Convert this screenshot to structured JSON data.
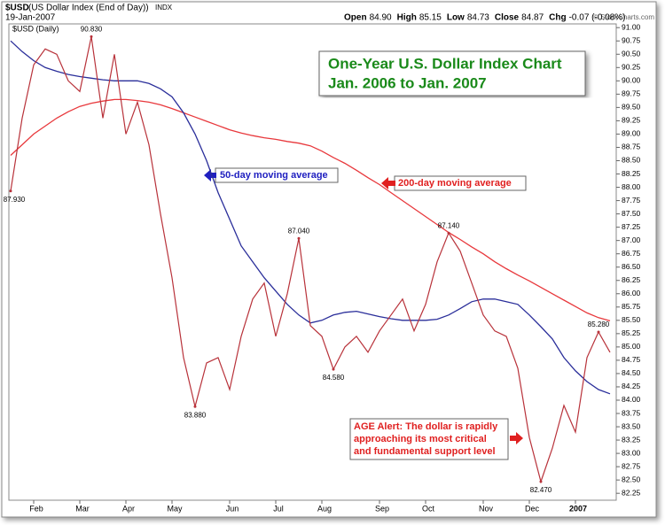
{
  "header": {
    "symbol": "$USD",
    "description": "(US Dollar Index (End of Day))",
    "exchange": "INDX",
    "date": "19-Jan-2007",
    "quote": [
      {
        "label": "Open",
        "value": "84.90"
      },
      {
        "label": "High",
        "value": "85.15"
      },
      {
        "label": "Low",
        "value": "84.73"
      },
      {
        "label": "Close",
        "value": "84.87"
      },
      {
        "label": "Chg",
        "value": "-0.07 (-0.08%)"
      }
    ],
    "source": "© StockCharts.com"
  },
  "chart_data": {
    "type": "line",
    "subtitle": "$USD (Daily)",
    "title": [
      "One-Year U.S. Dollar Index Chart",
      "Jan. 2006 to Jan. 2007"
    ],
    "categories": [
      null,
      null,
      "Feb",
      null,
      null,
      null,
      "Mar",
      null,
      null,
      null,
      "Apr",
      null,
      null,
      null,
      "May",
      null,
      null,
      null,
      null,
      "Jun",
      null,
      null,
      null,
      "Jul",
      null,
      null,
      null,
      "Aug",
      null,
      null,
      null,
      null,
      "Sep",
      null,
      null,
      null,
      "Oct",
      null,
      null,
      null,
      null,
      "Nov",
      null,
      null,
      null,
      "Dec",
      null,
      null,
      null,
      "2007",
      null,
      null,
      null
    ],
    "series": [
      {
        "color": "#b8323a",
        "values": [
          87.93,
          89.3,
          90.3,
          90.6,
          90.5,
          90.0,
          89.8,
          90.83,
          89.3,
          90.5,
          89.0,
          89.6,
          88.8,
          87.5,
          86.3,
          84.8,
          83.88,
          84.7,
          84.8,
          84.2,
          85.2,
          85.9,
          86.2,
          85.2,
          86.0,
          87.04,
          85.4,
          85.2,
          84.58,
          85.0,
          85.2,
          84.9,
          85.3,
          85.6,
          85.9,
          85.3,
          85.8,
          86.6,
          87.14,
          86.8,
          86.2,
          85.6,
          85.3,
          85.2,
          84.6,
          83.3,
          82.47,
          83.1,
          83.9,
          83.4,
          84.8,
          85.28,
          84.9
        ],
        "value_labels": [
          "87.930",
          null,
          null,
          null,
          null,
          null,
          null,
          "90.830",
          null,
          null,
          null,
          null,
          null,
          null,
          null,
          null,
          "83.880",
          null,
          null,
          null,
          null,
          null,
          null,
          null,
          null,
          "87.040",
          null,
          null,
          "84.580",
          null,
          null,
          null,
          null,
          null,
          null,
          null,
          null,
          null,
          "87.140",
          null,
          null,
          null,
          null,
          null,
          null,
          null,
          "82.470",
          null,
          null,
          null,
          null,
          "85.280",
          null
        ]
      },
      {
        "color": "#2a2e9a",
        "values": [
          90.75,
          90.55,
          90.38,
          90.25,
          90.18,
          90.12,
          90.08,
          90.05,
          90.02,
          90.0,
          90.0,
          90.0,
          89.95,
          89.85,
          89.7,
          89.4,
          89.0,
          88.5,
          87.9,
          87.4,
          86.9,
          86.6,
          86.3,
          86.05,
          85.8,
          85.6,
          85.45,
          85.5,
          85.6,
          85.65,
          85.67,
          85.62,
          85.57,
          85.53,
          85.5,
          85.5,
          85.5,
          85.52,
          85.6,
          85.72,
          85.85,
          85.9,
          85.9,
          85.85,
          85.8,
          85.6,
          85.38,
          85.15,
          84.8,
          84.55,
          84.35,
          84.2,
          84.12
        ]
      },
      {
        "color": "#e8383c",
        "values": [
          88.6,
          88.8,
          89.0,
          89.15,
          89.3,
          89.42,
          89.52,
          89.58,
          89.62,
          89.65,
          89.65,
          89.63,
          89.6,
          89.55,
          89.48,
          89.4,
          89.32,
          89.24,
          89.16,
          89.08,
          89.02,
          88.97,
          88.93,
          88.9,
          88.86,
          88.83,
          88.78,
          88.68,
          88.56,
          88.45,
          88.32,
          88.18,
          88.05,
          87.9,
          87.75,
          87.6,
          87.45,
          87.3,
          87.15,
          87.02,
          86.88,
          86.75,
          86.6,
          86.47,
          86.35,
          86.24,
          86.12,
          86.0,
          85.88,
          85.76,
          85.64,
          85.55,
          85.49
        ]
      }
    ],
    "annotations": [
      {
        "text": "50-day moving average",
        "color": "#2020c0"
      },
      {
        "text": "200-day moving average",
        "color": "#e02020"
      }
    ],
    "alert": {
      "lines": [
        "AGE Alert: The dollar is rapidly",
        "approaching its most critical",
        "and fundamental support level"
      ],
      "color": "#e02020"
    },
    "ylim": [
      82.12,
      91.07
    ],
    "yticks": [
      {
        "value": 82.25,
        "label": "82.25"
      },
      {
        "value": 82.5,
        "label": "82.50"
      },
      {
        "value": 82.75,
        "label": "82.75"
      },
      {
        "value": 83,
        "label": "83.00"
      },
      {
        "value": 83.25,
        "label": "83.25"
      },
      {
        "value": 83.5,
        "label": "83.50"
      },
      {
        "value": 83.75,
        "label": "83.75"
      },
      {
        "value": 84,
        "label": "84.00"
      },
      {
        "value": 84.25,
        "label": "84.25"
      },
      {
        "value": 84.5,
        "label": "84.50"
      },
      {
        "value": 84.75,
        "label": "84.75"
      },
      {
        "value": 85,
        "label": "85.00"
      },
      {
        "value": 85.25,
        "label": "85.25"
      },
      {
        "value": 85.5,
        "label": "85.50"
      },
      {
        "value": 85.75,
        "label": "85.75"
      },
      {
        "value": 86,
        "label": "86.00"
      },
      {
        "value": 86.25,
        "label": "86.25"
      },
      {
        "value": 86.5,
        "label": "86.50"
      },
      {
        "value": 86.75,
        "label": "86.75"
      },
      {
        "value": 87,
        "label": "87.00"
      },
      {
        "value": 87.25,
        "label": "87.25"
      },
      {
        "value": 87.5,
        "label": "87.50"
      },
      {
        "value": 87.75,
        "label": "87.75"
      },
      {
        "value": 88,
        "label": "88.00"
      },
      {
        "value": 88.25,
        "label": "88.25"
      },
      {
        "value": 88.5,
        "label": "88.50"
      },
      {
        "value": 88.75,
        "label": "88.75"
      },
      {
        "value": 89,
        "label": "89.00"
      },
      {
        "value": 89.25,
        "label": "89.25"
      },
      {
        "value": 89.5,
        "label": "89.50"
      },
      {
        "value": 89.75,
        "label": "89.75"
      },
      {
        "value": 90,
        "label": "90.00"
      },
      {
        "value": 90.25,
        "label": "90.25"
      },
      {
        "value": 90.5,
        "label": "90.50"
      },
      {
        "value": 90.75,
        "label": "90.75"
      },
      {
        "value": 91,
        "label": "91.00"
      }
    ],
    "grid": false
  }
}
